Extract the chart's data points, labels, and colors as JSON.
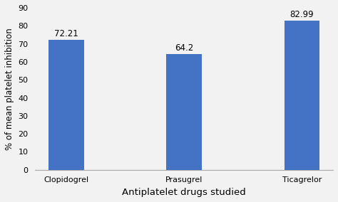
{
  "categories": [
    "Clopidogrel",
    "Prasugrel",
    "Ticagrelor"
  ],
  "values": [
    72.21,
    64.2,
    82.99
  ],
  "bar_color": "#4472C4",
  "ylabel": "% of mean platelet inhibition",
  "xlabel": "Antiplatelet drugs studied",
  "ylim": [
    0,
    90
  ],
  "yticks": [
    0,
    10,
    20,
    30,
    40,
    50,
    60,
    70,
    80,
    90
  ],
  "bar_width": 0.3,
  "tick_fontsize": 8,
  "xlabel_fontsize": 9.5,
  "ylabel_fontsize": 8.5,
  "annotation_fontsize": 8.5,
  "background_color": "#f2f2f2"
}
